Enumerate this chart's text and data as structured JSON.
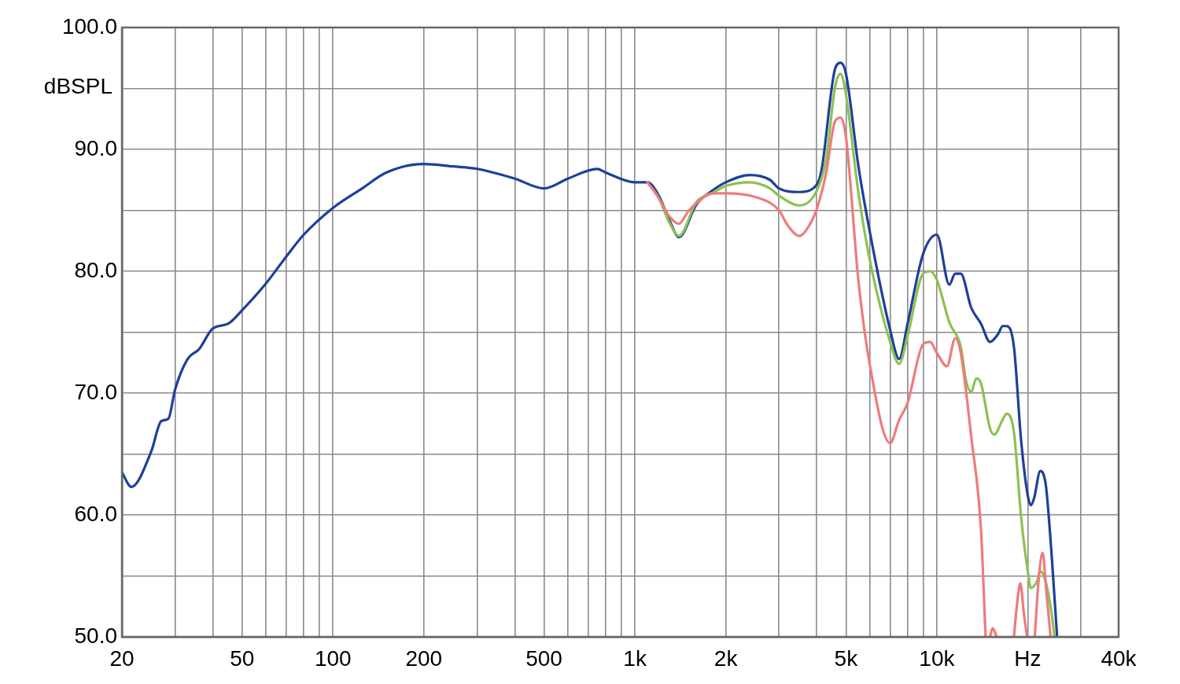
{
  "chart_data": {
    "type": "line",
    "ylabel": "dBSPL",
    "log": "x",
    "grid": true,
    "legend": false,
    "marker": "none",
    "line_style": "solid",
    "xlim": [
      20,
      40000
    ],
    "ylim": [
      50,
      100
    ],
    "xticks": [
      20,
      {
        "value": 30,
        "label": null
      },
      {
        "value": 40,
        "label": null
      },
      50,
      {
        "value": 60,
        "label": null
      },
      {
        "value": 70,
        "label": null
      },
      {
        "value": 80,
        "label": null
      },
      {
        "value": 90,
        "label": null
      },
      100,
      200,
      {
        "value": 300,
        "label": null
      },
      {
        "value": 400,
        "label": null
      },
      500,
      {
        "value": 600,
        "label": null
      },
      {
        "value": 700,
        "label": null
      },
      {
        "value": 800,
        "label": null
      },
      {
        "value": 900,
        "label": null
      },
      {
        "value": 1000,
        "label": "1k"
      },
      {
        "value": 2000,
        "label": "2k"
      },
      {
        "value": 3000,
        "label": null
      },
      {
        "value": 4000,
        "label": null
      },
      {
        "value": 5000,
        "label": "5k"
      },
      {
        "value": 6000,
        "label": null
      },
      {
        "value": 7000,
        "label": null
      },
      {
        "value": 8000,
        "label": null
      },
      {
        "value": 9000,
        "label": null
      },
      {
        "value": 10000,
        "label": "10k"
      },
      {
        "value": 20000,
        "label": "Hz"
      },
      {
        "value": 30000,
        "label": null
      },
      {
        "value": 40000,
        "label": "40k"
      }
    ],
    "yticks": [
      {
        "value": 50,
        "label": "50.0"
      },
      {
        "value": 55,
        "label": null
      },
      {
        "value": 60,
        "label": "60.0"
      },
      {
        "value": 65,
        "label": null
      },
      {
        "value": 70,
        "label": "70.0"
      },
      {
        "value": 75,
        "label": null
      },
      {
        "value": 80,
        "label": "80.0"
      },
      {
        "value": 85,
        "label": null
      },
      {
        "value": 90,
        "label": "90.0"
      },
      {
        "value": 95,
        "label": null
      },
      {
        "value": 100,
        "label": "100.0"
      }
    ],
    "series": [
      {
        "color": "#ee7b7b",
        "x": [
          1100,
          1200,
          1300,
          1400,
          1500,
          1600,
          1800,
          2000,
          2500,
          3000,
          3200,
          3500,
          3700,
          4000,
          4300,
          4600,
          4800,
          5000,
          5500,
          6000,
          7000,
          7500,
          8000,
          9000,
          9500,
          10000,
          10800,
          11500,
          12000,
          13000,
          14000,
          14500,
          14700,
          15000,
          15300,
          15800,
          16500,
          18000,
          18400,
          18900,
          19400,
          19900,
          20500,
          21100,
          21700,
          22400,
          23000,
          23800
        ],
        "values": [
          87.3,
          86.0,
          84.5,
          83.9,
          84.9,
          85.6,
          86.4,
          86.4,
          86.1,
          85.0,
          83.8,
          82.9,
          83.4,
          85.1,
          88.1,
          92.3,
          92.6,
          91.0,
          79.2,
          72.3,
          65.9,
          67.8,
          69.2,
          74.0,
          74.2,
          73.3,
          72.2,
          74.5,
          73.3,
          66.4,
          58.8,
          50.0,
          null,
          50.0,
          50.7,
          50.0,
          null,
          50.0,
          52.5,
          54.4,
          52.0,
          50.0,
          null,
          50.0,
          54.5,
          56.9,
          54.0,
          50.0
        ]
      },
      {
        "color": "#8cc152",
        "x": [
          1100,
          1200,
          1300,
          1400,
          1600,
          1800,
          2000,
          2400,
          2800,
          3000,
          3500,
          4000,
          4300,
          4600,
          4800,
          5000,
          5500,
          6000,
          7000,
          7500,
          8000,
          9000,
          9500,
          10000,
          11000,
          12000,
          12500,
          13000,
          13500,
          14000,
          15000,
          15500,
          16500,
          17000,
          18000,
          19000,
          20000,
          20500,
          21500,
          22000,
          23000,
          24000,
          24500
        ],
        "values": [
          87.3,
          86.0,
          84.0,
          82.9,
          85.7,
          86.4,
          87.0,
          87.3,
          86.8,
          86.2,
          85.4,
          86.6,
          89.2,
          95.1,
          96.2,
          94.5,
          86.4,
          80.9,
          74.2,
          72.4,
          74.7,
          79.8,
          80.0,
          79.3,
          75.8,
          73.8,
          71.0,
          70.1,
          71.2,
          70.8,
          67.1,
          66.6,
          67.8,
          68.3,
          66.8,
          59.9,
          55.4,
          54.0,
          54.6,
          55.4,
          54.4,
          51.9,
          50.1
        ]
      },
      {
        "color": "#1f3f99",
        "x": [
          20,
          21.5,
          25,
          27,
          28.5,
          30,
          33,
          36,
          40,
          45,
          50,
          60,
          70,
          80,
          100,
          125,
          150,
          200,
          250,
          300,
          400,
          500,
          600,
          750,
          800,
          1000,
          1100,
          1200,
          1300,
          1400,
          1600,
          1800,
          2000,
          2400,
          2800,
          3000,
          3500,
          4000,
          4150,
          4600,
          4800,
          5000,
          5500,
          6000,
          7000,
          7500,
          8000,
          9000,
          10000,
          11000,
          11500,
          12000,
          13000,
          14000,
          15000,
          16000,
          16500,
          17000,
          18000,
          19000,
          20000,
          20500,
          21000,
          22000,
          22500,
          23000,
          24000,
          25000
        ],
        "values": [
          63.5,
          62.3,
          65.2,
          67.7,
          67.9,
          70.3,
          72.8,
          73.6,
          75.3,
          75.7,
          76.8,
          79.0,
          81.2,
          83.0,
          85.2,
          86.8,
          88.1,
          88.8,
          88.6,
          88.4,
          87.6,
          86.8,
          87.6,
          88.4,
          88.1,
          87.3,
          87.3,
          86.2,
          84.2,
          82.8,
          85.5,
          86.6,
          87.3,
          87.9,
          87.5,
          86.8,
          86.5,
          87.1,
          88.3,
          96.6,
          97.1,
          96.2,
          88.6,
          83.2,
          75.2,
          72.8,
          75.7,
          81.4,
          83.0,
          78.9,
          79.8,
          79.8,
          77.0,
          75.7,
          74.2,
          74.9,
          75.5,
          75.5,
          73.8,
          66.2,
          61.6,
          60.8,
          61.4,
          63.6,
          63.4,
          62.3,
          56.7,
          50.1
        ]
      }
    ]
  }
}
